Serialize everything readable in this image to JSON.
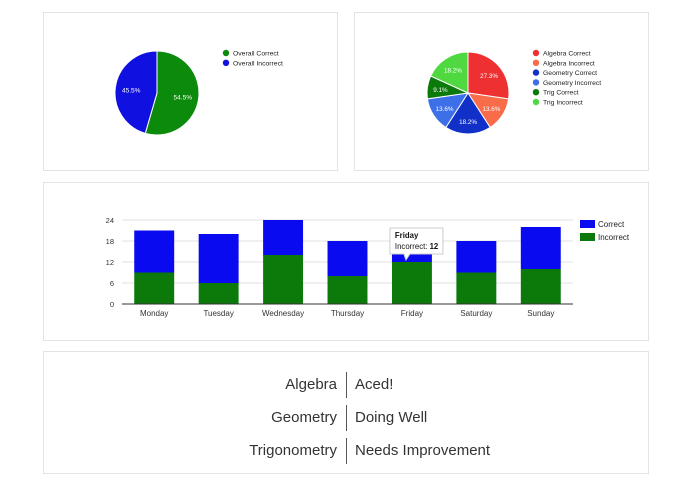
{
  "chart_data": [
    {
      "type": "pie",
      "slices": [
        {
          "name": "Overall Correct",
          "value": 54.5,
          "label": "54.5%",
          "color": "#0b8a0b"
        },
        {
          "name": "Overall Incorrect",
          "value": 45.5,
          "label": "45.5%",
          "color": "#1010e0"
        }
      ],
      "legend_position": "right"
    },
    {
      "type": "pie",
      "slices": [
        {
          "name": "Algebra Correct",
          "value": 27.3,
          "label": "27.3%",
          "color": "#ef3030"
        },
        {
          "name": "Algebra Incorrect",
          "value": 13.6,
          "label": "13.6%",
          "color": "#f86c4a"
        },
        {
          "name": "Geometry Correct",
          "value": 18.2,
          "label": "18.2%",
          "color": "#1030c8"
        },
        {
          "name": "Geometry Incorrect",
          "value": 13.6,
          "label": "13.6%",
          "color": "#3c6fe8"
        },
        {
          "name": "Trig Correct",
          "value": 9.1,
          "label": "9.1%",
          "color": "#0b7a0b"
        },
        {
          "name": "Trig Incorrect",
          "value": 18.2,
          "label": "18.2%",
          "color": "#50d840"
        }
      ],
      "legend_position": "right"
    },
    {
      "type": "bar",
      "stacked": true,
      "categories": [
        "Monday",
        "Tuesday",
        "Wednesday",
        "Thursday",
        "Friday",
        "Saturday",
        "Sunday"
      ],
      "series": [
        {
          "name": "Incorrect",
          "values": [
            9,
            6,
            14,
            8,
            12,
            9,
            10
          ],
          "color": "#0b7a0b"
        },
        {
          "name": "Correct",
          "values": [
            12,
            14,
            10,
            10,
            7,
            9,
            12
          ],
          "color": "#0a0af0"
        }
      ],
      "yticks": [
        0,
        6,
        12,
        18,
        24
      ],
      "ylim": [
        0,
        24
      ],
      "grid": true,
      "legend_position": "right",
      "legend_order": [
        "Correct",
        "Incorrect"
      ],
      "tooltip": {
        "title": "Friday",
        "label": "Incorrect:",
        "value": "12"
      }
    }
  ],
  "summary": [
    {
      "subject": "Algebra",
      "status": "Aced!"
    },
    {
      "subject": "Geometry",
      "status": "Doing Well"
    },
    {
      "subject": "Trigonometry",
      "status": "Needs Improvement"
    }
  ]
}
